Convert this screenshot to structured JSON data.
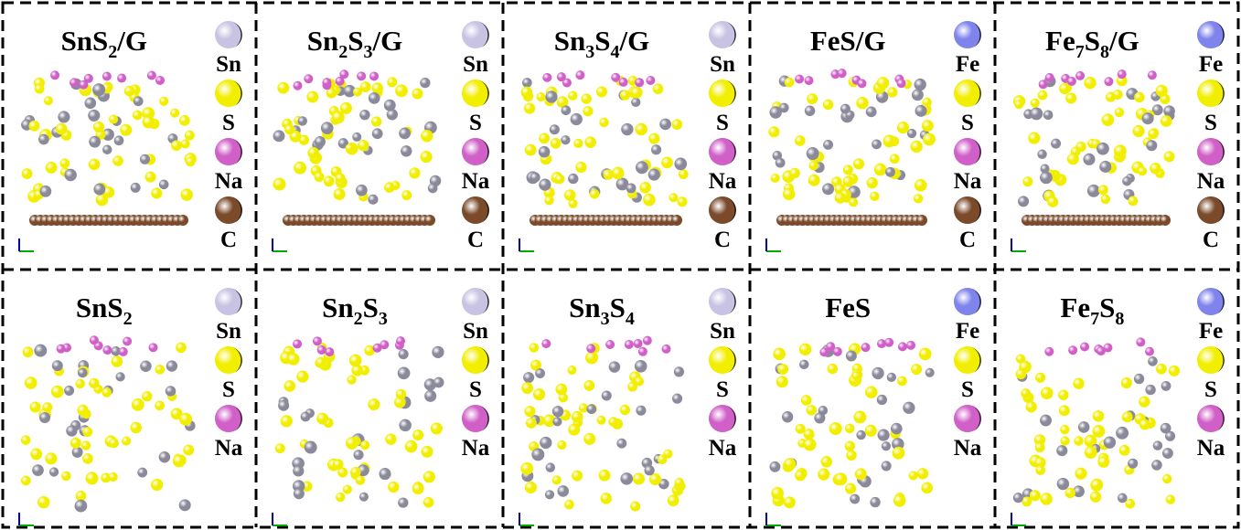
{
  "panels": [
    {
      "title": [
        {
          "text": "SnS"
        },
        {
          "sub": "2"
        },
        {
          "text": "/G"
        }
      ],
      "graphene": true,
      "legend": [
        {
          "label": "Sn",
          "color": "#c9c3e3"
        },
        {
          "label": "S",
          "color": "#f2ee00"
        },
        {
          "label": "Na",
          "color": "#d060c8"
        },
        {
          "label": "C",
          "color": "#7a4a2a"
        }
      ]
    },
    {
      "title": [
        {
          "text": "Sn"
        },
        {
          "sub": "2"
        },
        {
          "text": "S"
        },
        {
          "sub": "3"
        },
        {
          "text": "/G"
        }
      ],
      "graphene": true,
      "legend": [
        {
          "label": "Sn",
          "color": "#c9c3e3"
        },
        {
          "label": "S",
          "color": "#f2ee00"
        },
        {
          "label": "Na",
          "color": "#d060c8"
        },
        {
          "label": "C",
          "color": "#7a4a2a"
        }
      ]
    },
    {
      "title": [
        {
          "text": "Sn"
        },
        {
          "sub": "3"
        },
        {
          "text": "S"
        },
        {
          "sub": "4"
        },
        {
          "text": "/G"
        }
      ],
      "graphene": true,
      "legend": [
        {
          "label": "Sn",
          "color": "#c9c3e3"
        },
        {
          "label": "S",
          "color": "#f2ee00"
        },
        {
          "label": "Na",
          "color": "#d060c8"
        },
        {
          "label": "C",
          "color": "#7a4a2a"
        }
      ]
    },
    {
      "title": [
        {
          "text": "FeS/G"
        }
      ],
      "graphene": true,
      "legend": [
        {
          "label": "Fe",
          "color": "#7f84ec"
        },
        {
          "label": "S",
          "color": "#f2ee00"
        },
        {
          "label": "Na",
          "color": "#d060c8"
        },
        {
          "label": "C",
          "color": "#7a4a2a"
        }
      ]
    },
    {
      "title": [
        {
          "text": "Fe"
        },
        {
          "sub": "7"
        },
        {
          "text": "S"
        },
        {
          "sub": "8"
        },
        {
          "text": "/G"
        }
      ],
      "graphene": true,
      "legend": [
        {
          "label": "Fe",
          "color": "#7f84ec"
        },
        {
          "label": "S",
          "color": "#f2ee00"
        },
        {
          "label": "Na",
          "color": "#d060c8"
        },
        {
          "label": "C",
          "color": "#7a4a2a"
        }
      ]
    },
    {
      "title": [
        {
          "text": "SnS"
        },
        {
          "sub": "2"
        }
      ],
      "graphene": false,
      "legend": [
        {
          "label": "Sn",
          "color": "#c9c3e3"
        },
        {
          "label": "S",
          "color": "#f2ee00"
        },
        {
          "label": "Na",
          "color": "#d060c8"
        }
      ]
    },
    {
      "title": [
        {
          "text": "Sn"
        },
        {
          "sub": "2"
        },
        {
          "text": "S"
        },
        {
          "sub": "3"
        }
      ],
      "graphene": false,
      "legend": [
        {
          "label": "Sn",
          "color": "#c9c3e3"
        },
        {
          "label": "S",
          "color": "#f2ee00"
        },
        {
          "label": "Na",
          "color": "#d060c8"
        }
      ]
    },
    {
      "title": [
        {
          "text": "Sn"
        },
        {
          "sub": "3"
        },
        {
          "text": "S"
        },
        {
          "sub": "4"
        }
      ],
      "graphene": false,
      "legend": [
        {
          "label": "Sn",
          "color": "#c9c3e3"
        },
        {
          "label": "S",
          "color": "#f2ee00"
        },
        {
          "label": "Na",
          "color": "#d060c8"
        }
      ]
    },
    {
      "title": [
        {
          "text": "FeS"
        }
      ],
      "graphene": false,
      "legend": [
        {
          "label": "Fe",
          "color": "#7f84ec"
        },
        {
          "label": "S",
          "color": "#f2ee00"
        },
        {
          "label": "Na",
          "color": "#d060c8"
        }
      ]
    },
    {
      "title": [
        {
          "text": "Fe"
        },
        {
          "sub": "7"
        },
        {
          "text": "S"
        },
        {
          "sub": "8"
        }
      ],
      "graphene": false,
      "legend": [
        {
          "label": "Fe",
          "color": "#7f84ec"
        },
        {
          "label": "S",
          "color": "#f2ee00"
        },
        {
          "label": "Na",
          "color": "#d060c8"
        }
      ]
    }
  ]
}
